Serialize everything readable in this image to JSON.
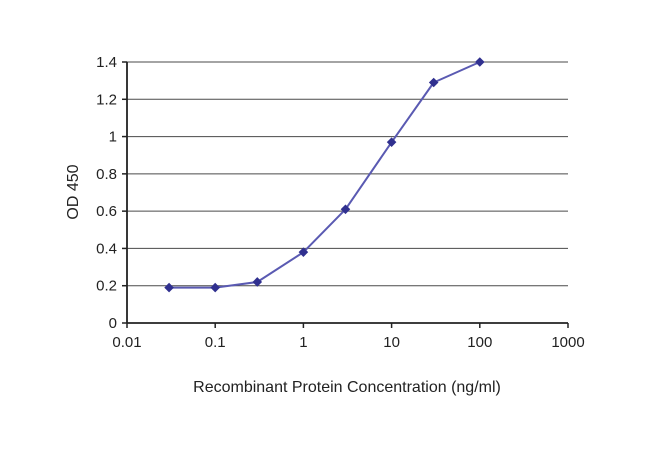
{
  "chart_data": {
    "type": "line",
    "title": "",
    "xlabel": "Recombinant Protein Concentration (ng/ml)",
    "ylabel": "OD 450",
    "x_scale": "log",
    "xlim": [
      0.01,
      1000
    ],
    "ylim": [
      0,
      1.4
    ],
    "x_ticks": [
      0.01,
      0.1,
      1,
      10,
      100,
      1000
    ],
    "x_tick_labels": [
      "0.01",
      "0.1",
      "1",
      "10",
      "100",
      "1000"
    ],
    "y_ticks": [
      0,
      0.2,
      0.4,
      0.6,
      0.8,
      1.0,
      1.2,
      1.4
    ],
    "y_tick_labels": [
      "0",
      "0.2",
      "0.4",
      "0.6",
      "0.8",
      "1",
      "1.2",
      "1.4"
    ],
    "grid": "horizontal",
    "legend": "none",
    "colors": {
      "line": "#5a5ab2",
      "marker": "#30308f",
      "axis": "#222222",
      "gridline": "#4a4a4a"
    },
    "series": [
      {
        "name": "OD 450",
        "marker": "diamond",
        "points": [
          {
            "x": 0.03,
            "y": 0.19
          },
          {
            "x": 0.1,
            "y": 0.19
          },
          {
            "x": 0.3,
            "y": 0.22
          },
          {
            "x": 1,
            "y": 0.38
          },
          {
            "x": 3,
            "y": 0.61
          },
          {
            "x": 10,
            "y": 0.97
          },
          {
            "x": 30,
            "y": 1.29
          },
          {
            "x": 100,
            "y": 1.4
          }
        ]
      }
    ]
  }
}
